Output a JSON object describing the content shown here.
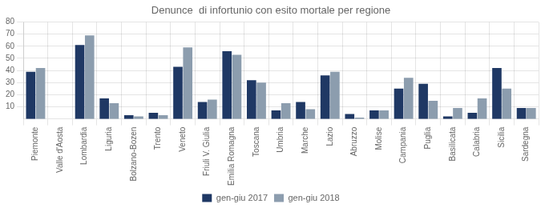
{
  "chart_data": {
    "type": "bar",
    "title": "Denunce  di infortunio con esito mortale per regione",
    "categories": [
      "Piemonte",
      "Valle d'Aosta",
      "Lombardia",
      "Liguria",
      "Bolzano-Bozen",
      "Trento",
      "Veneto",
      "Friuli V. Giulia",
      "Emilia Romagna",
      "Toscana",
      "Umbria",
      "Marche",
      "Lazio",
      "Abruzzo",
      "Molise",
      "Campania",
      "Puglia",
      "Basilicata",
      "Calabria",
      "Sicilia",
      "Sardegna"
    ],
    "series": [
      {
        "name": "gen-giu 2017",
        "color": "#1f3864",
        "values": [
          39,
          0,
          61,
          17,
          3,
          5,
          43,
          14,
          56,
          32,
          7,
          14,
          36,
          4,
          7,
          25,
          29,
          2,
          5,
          42,
          9
        ]
      },
      {
        "name": "gen-giu 2018",
        "color": "#8c9dae",
        "values": [
          42,
          0,
          69,
          13,
          2,
          3,
          59,
          16,
          53,
          30,
          13,
          8,
          39,
          1,
          7,
          34,
          15,
          9,
          17,
          25,
          9
        ]
      }
    ],
    "ylim": [
      0,
      80
    ],
    "yticks": [
      10,
      20,
      30,
      40,
      50,
      60,
      70,
      80
    ],
    "grid": true,
    "legend": "bottom"
  }
}
